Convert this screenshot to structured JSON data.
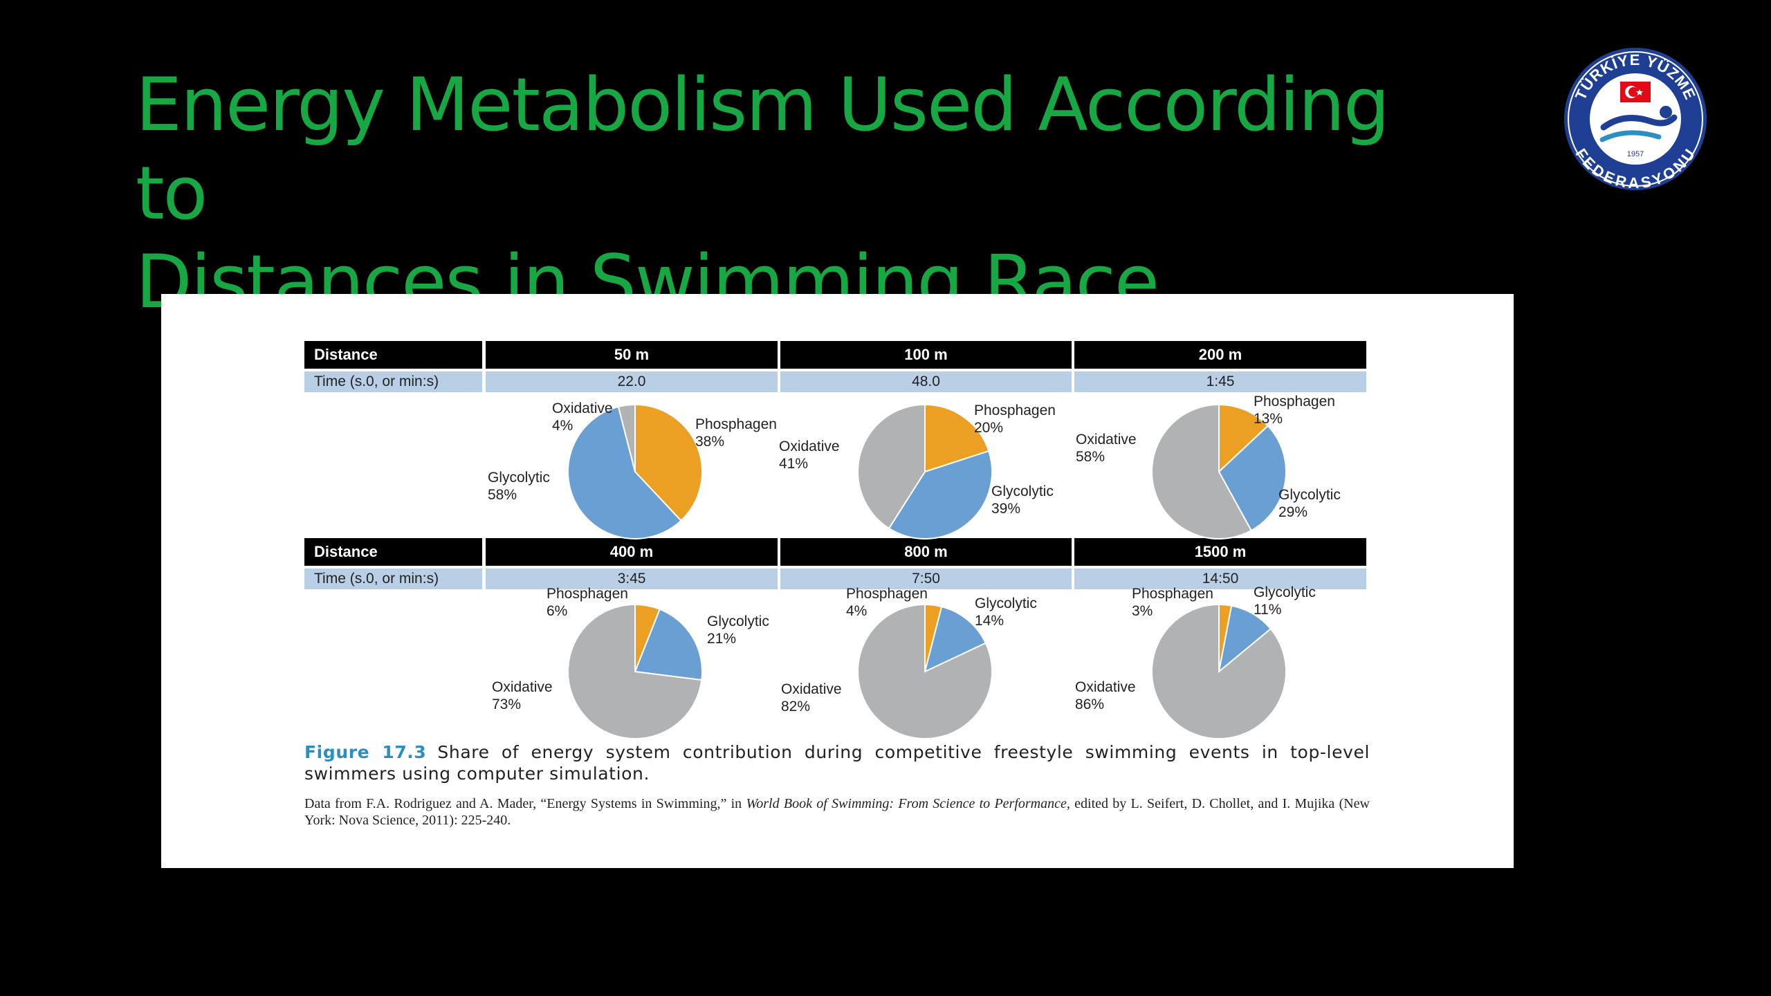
{
  "slide": {
    "title_line1": "Energy Metabolism Used According to",
    "title_line2": "Distances in Swimming Race"
  },
  "logo": {
    "text_top": "TÜRKİYE YÜZME",
    "text_bottom": "FEDERASYONU",
    "year": "1957",
    "colors": {
      "ring": "#1f3f95",
      "flag": "#e30a17",
      "wave": "#1f3f95"
    }
  },
  "colors": {
    "title": "#17a844",
    "phosphagen": "#eba024",
    "glycolytic": "#6a9fd4",
    "oxidative": "#b0b2b3",
    "header_row": "#000000",
    "time_row": "#b8cfe6",
    "figure_label": "#2b8fc4"
  },
  "table": {
    "header_label": "Distance",
    "time_label": "Time (s.0, or min:s)"
  },
  "chart_data": [
    {
      "type": "pie",
      "distance": "50 m",
      "time": "22.0",
      "slices": [
        {
          "label": "Phosphagen",
          "value": 38,
          "text": "38%"
        },
        {
          "label": "Glycolytic",
          "value": 58,
          "text": "58%"
        },
        {
          "label": "Oxidative",
          "value": 4,
          "text": "4%"
        }
      ]
    },
    {
      "type": "pie",
      "distance": "100 m",
      "time": "48.0",
      "slices": [
        {
          "label": "Phosphagen",
          "value": 20,
          "text": "20%"
        },
        {
          "label": "Glycolytic",
          "value": 39,
          "text": "39%"
        },
        {
          "label": "Oxidative",
          "value": 41,
          "text": "41%"
        }
      ]
    },
    {
      "type": "pie",
      "distance": "200 m",
      "time": "1:45",
      "slices": [
        {
          "label": "Phosphagen",
          "value": 13,
          "text": "13%"
        },
        {
          "label": "Glycolytic",
          "value": 29,
          "text": "29%"
        },
        {
          "label": "Oxidative",
          "value": 58,
          "text": "58%"
        }
      ]
    },
    {
      "type": "pie",
      "distance": "400 m",
      "time": "3:45",
      "slices": [
        {
          "label": "Phosphagen",
          "value": 6,
          "text": "6%"
        },
        {
          "label": "Glycolytic",
          "value": 21,
          "text": "21%"
        },
        {
          "label": "Oxidative",
          "value": 73,
          "text": "73%"
        }
      ]
    },
    {
      "type": "pie",
      "distance": "800 m",
      "time": "7:50",
      "slices": [
        {
          "label": "Phosphagen",
          "value": 4,
          "text": "4%"
        },
        {
          "label": "Glycolytic",
          "value": 14,
          "text": "14%"
        },
        {
          "label": "Oxidative",
          "value": 82,
          "text": "82%"
        }
      ]
    },
    {
      "type": "pie",
      "distance": "1500 m",
      "time": "14:50",
      "slices": [
        {
          "label": "Phosphagen",
          "value": 3,
          "text": "3%"
        },
        {
          "label": "Glycolytic",
          "value": 11,
          "text": "11%"
        },
        {
          "label": "Oxidative",
          "value": 86,
          "text": "86%"
        }
      ]
    }
  ],
  "caption": {
    "figure_number": "Figure 17.3",
    "text": "Share of energy system contribution during competitive freestyle swimming events in top-level swimmers using computer simulation.",
    "source_prefix": "Data from F.A. Rodriguez and A. Mader, “Energy Systems in Swimming,” in",
    "source_book": "World Book of Swimming: From Science to Performance",
    "source_suffix": ", edited by L. Seifert, D. Chollet, and I. Mujika (New York: Nova Science, 2011): 225-240."
  }
}
